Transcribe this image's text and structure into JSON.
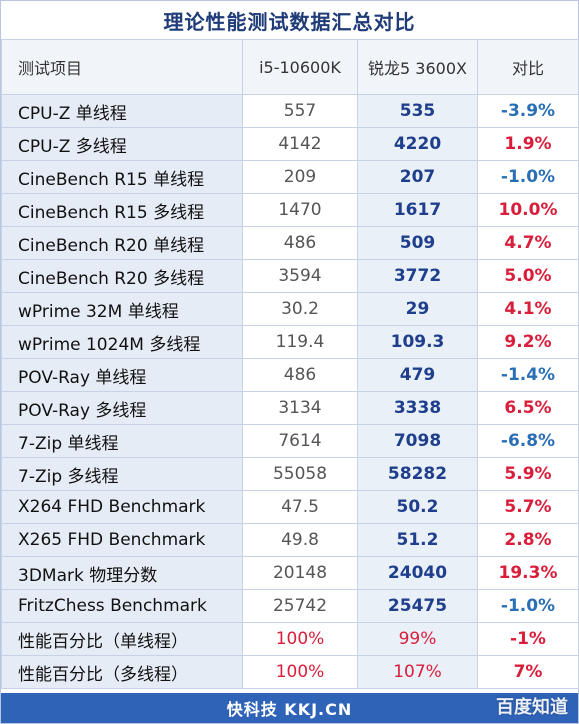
{
  "title": "理论性能测试数据汇总对比",
  "columns": {
    "name": "测试项目",
    "intel": "i5-10600K",
    "amd": "锐龙5 3600X",
    "diff": "对比"
  },
  "rows": [
    {
      "name": "CPU-Z 单线程",
      "intel": "557",
      "amd": "535",
      "diff": "-3.9%",
      "sign": "neg"
    },
    {
      "name": "CPU-Z 多线程",
      "intel": "4142",
      "amd": "4220",
      "diff": "1.9%",
      "sign": "pos"
    },
    {
      "name": "CineBench R15 单线程",
      "intel": "209",
      "amd": "207",
      "diff": "-1.0%",
      "sign": "neg"
    },
    {
      "name": "CineBench R15 多线程",
      "intel": "1470",
      "amd": "1617",
      "diff": "10.0%",
      "sign": "pos"
    },
    {
      "name": "CineBench R20 单线程",
      "intel": "486",
      "amd": "509",
      "diff": "4.7%",
      "sign": "pos"
    },
    {
      "name": "CineBench R20 多线程",
      "intel": "3594",
      "amd": "3772",
      "diff": "5.0%",
      "sign": "pos"
    },
    {
      "name": "wPrime 32M 单线程",
      "intel": "30.2",
      "amd": "29",
      "diff": "4.1%",
      "sign": "pos"
    },
    {
      "name": "wPrime 1024M 多线程",
      "intel": "119.4",
      "amd": "109.3",
      "diff": "9.2%",
      "sign": "pos"
    },
    {
      "name": "POV-Ray 单线程",
      "intel": "486",
      "amd": "479",
      "diff": "-1.4%",
      "sign": "neg"
    },
    {
      "name": "POV-Ray 多线程",
      "intel": "3134",
      "amd": "3338",
      "diff": "6.5%",
      "sign": "pos"
    },
    {
      "name": "7-Zip 单线程",
      "intel": "7614",
      "amd": "7098",
      "diff": "-6.8%",
      "sign": "neg"
    },
    {
      "name": "7-Zip 多线程",
      "intel": "55058",
      "amd": "58282",
      "diff": "5.9%",
      "sign": "pos"
    },
    {
      "name": "X264 FHD Benchmark",
      "intel": "47.5",
      "amd": "50.2",
      "diff": "5.7%",
      "sign": "pos"
    },
    {
      "name": "X265 FHD Benchmark",
      "intel": "49.8",
      "amd": "51.2",
      "diff": "2.8%",
      "sign": "pos"
    },
    {
      "name": "3DMark 物理分数",
      "intel": "20148",
      "amd": "24040",
      "diff": "19.3%",
      "sign": "pos"
    },
    {
      "name": "FritzChess Benchmark",
      "intel": "25742",
      "amd": "25475",
      "diff": "-1.0%",
      "sign": "neg"
    },
    {
      "name": "性能百分比（单线程）",
      "intel": "100%",
      "amd": "99%",
      "diff": "-1%",
      "sign": "pct"
    },
    {
      "name": "性能百分比（多线程）",
      "intel": "100%",
      "amd": "107%",
      "diff": "7%",
      "sign": "pct"
    }
  ],
  "footer": "快科技 KKJ.CN",
  "watermark": "百度知道",
  "colors": {
    "title": "#1f3b78",
    "footer_bg": "#2e63b8",
    "positive": "#d81e3a",
    "negative": "#2a6fb5",
    "amd_value": "#1f3f8c"
  }
}
